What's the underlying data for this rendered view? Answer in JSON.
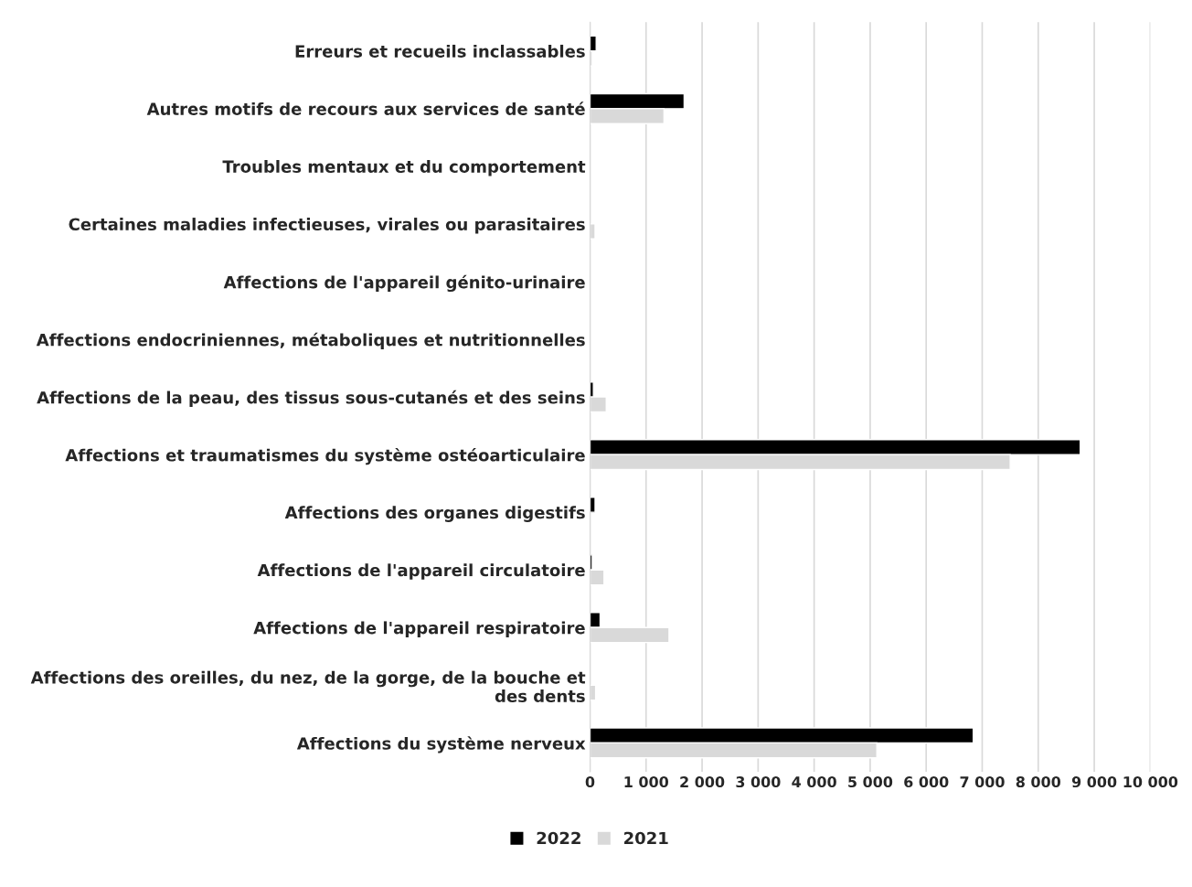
{
  "chart_data": {
    "type": "bar",
    "orientation": "horizontal",
    "categories": [
      "Erreurs et recueils inclassables",
      "Autres motifs de recours aux services de santé",
      "Troubles mentaux et du comportement",
      "Certaines maladies infectieuses, virales ou parasitaires",
      "Affections de l'appareil génito-urinaire",
      "Affections endocriniennes, métaboliques et nutritionnelles",
      "Affections de la peau, des tissus sous-cutanés et des seins",
      "Affections et traumatismes du système ostéoarticulaire",
      "Affections des organes digestifs",
      "Affections de l'appareil circulatoire",
      "Affections de l'appareil respiratoire",
      "Affections des oreilles, du nez, de la gorge, de la bouche et des dents",
      "Affections du système nerveux"
    ],
    "series": [
      {
        "name": "2022",
        "color": "#000000",
        "values": [
          110,
          1680,
          null,
          null,
          null,
          null,
          60,
          8750,
          90,
          40,
          180,
          null,
          6840
        ]
      },
      {
        "name": "2021",
        "color": "#d9d9d9",
        "values": [
          40,
          1320,
          null,
          90,
          null,
          null,
          290,
          7500,
          null,
          250,
          1410,
          100,
          5120
        ]
      }
    ],
    "xlim": [
      0,
      10000
    ],
    "xticks": [
      0,
      {
        "value": 1000,
        "label": "1 000"
      },
      {
        "value": 2000,
        "label": "2 000"
      },
      {
        "value": 3000,
        "label": "3 000"
      },
      {
        "value": 4000,
        "label": "4 000"
      },
      {
        "value": 5000,
        "label": "5 000"
      },
      {
        "value": 6000,
        "label": "6 000"
      },
      {
        "value": 7000,
        "label": "7 000"
      },
      {
        "value": 8000,
        "label": "8 000"
      },
      {
        "value": 9000,
        "label": "9 000"
      },
      {
        "value": 10000,
        "label": "10 000"
      }
    ],
    "grid": "x",
    "legend": "bottom"
  }
}
